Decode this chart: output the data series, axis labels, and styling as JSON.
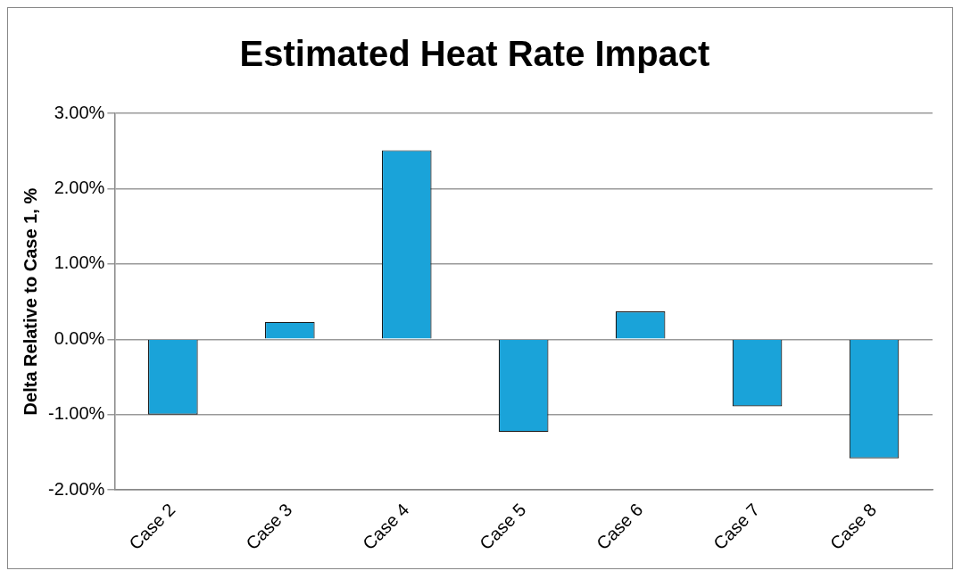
{
  "chart_data": {
    "type": "bar",
    "title": "Estimated Heat Rate Impact",
    "ylabel": "Delta Relative to Case 1, %",
    "categories": [
      "Case 2",
      "Case 3",
      "Case 4",
      "Case 5",
      "Case 6",
      "Case 7",
      "Case 8"
    ],
    "values": [
      -1.0,
      0.23,
      2.51,
      -1.23,
      0.37,
      -0.89,
      -1.58
    ],
    "color": "#1aa3d9",
    "ylim": [
      -2,
      3
    ],
    "yticks": [
      {
        "value": -2,
        "label": "-2.00%"
      },
      {
        "value": -1,
        "label": "-1.00%"
      },
      {
        "value": 0,
        "label": "0.00%"
      },
      {
        "value": 1,
        "label": "1.00%"
      },
      {
        "value": 2,
        "label": "2.00%"
      },
      {
        "value": 3,
        "label": "3.00%"
      }
    ],
    "grid": "y",
    "legend": false
  }
}
